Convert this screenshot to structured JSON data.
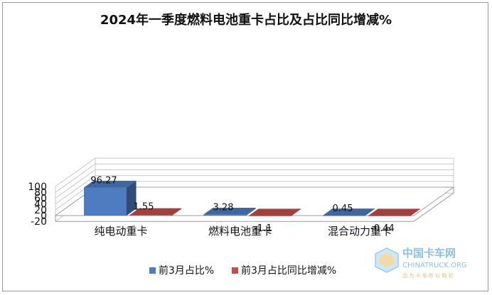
{
  "chart_data": {
    "type": "bar",
    "title": "2024年一季度燃料电池重卡占比及占比同比增减%",
    "categories": [
      "纯电动重卡",
      "燃料电池重卡",
      "混合动力重卡"
    ],
    "series": [
      {
        "name": "前3月占比%",
        "values": [
          96.27,
          3.28,
          0.45
        ],
        "color": "#4F7BC0"
      },
      {
        "name": "前3月占比同比增减%",
        "values": [
          1.55,
          -1.1,
          -0.44
        ],
        "color": "#C0504D"
      }
    ],
    "y_ticks": [
      "100",
      "80",
      "60",
      "40",
      "20",
      "0",
      "-20"
    ],
    "data_labels": [
      [
        "96.27",
        "3.28",
        "0.45"
      ],
      [
        "1.55",
        "-1.1",
        "-0.44"
      ]
    ],
    "ylim": [
      -20,
      100
    ],
    "grid": true,
    "legend_position": "bottom",
    "bar_style": "3d"
  },
  "watermark": {
    "main": "中国卡车网",
    "sub": "CHINATRUCK.ORG",
    "slogan": "因 为 卡 车 所 以 精 彩"
  }
}
